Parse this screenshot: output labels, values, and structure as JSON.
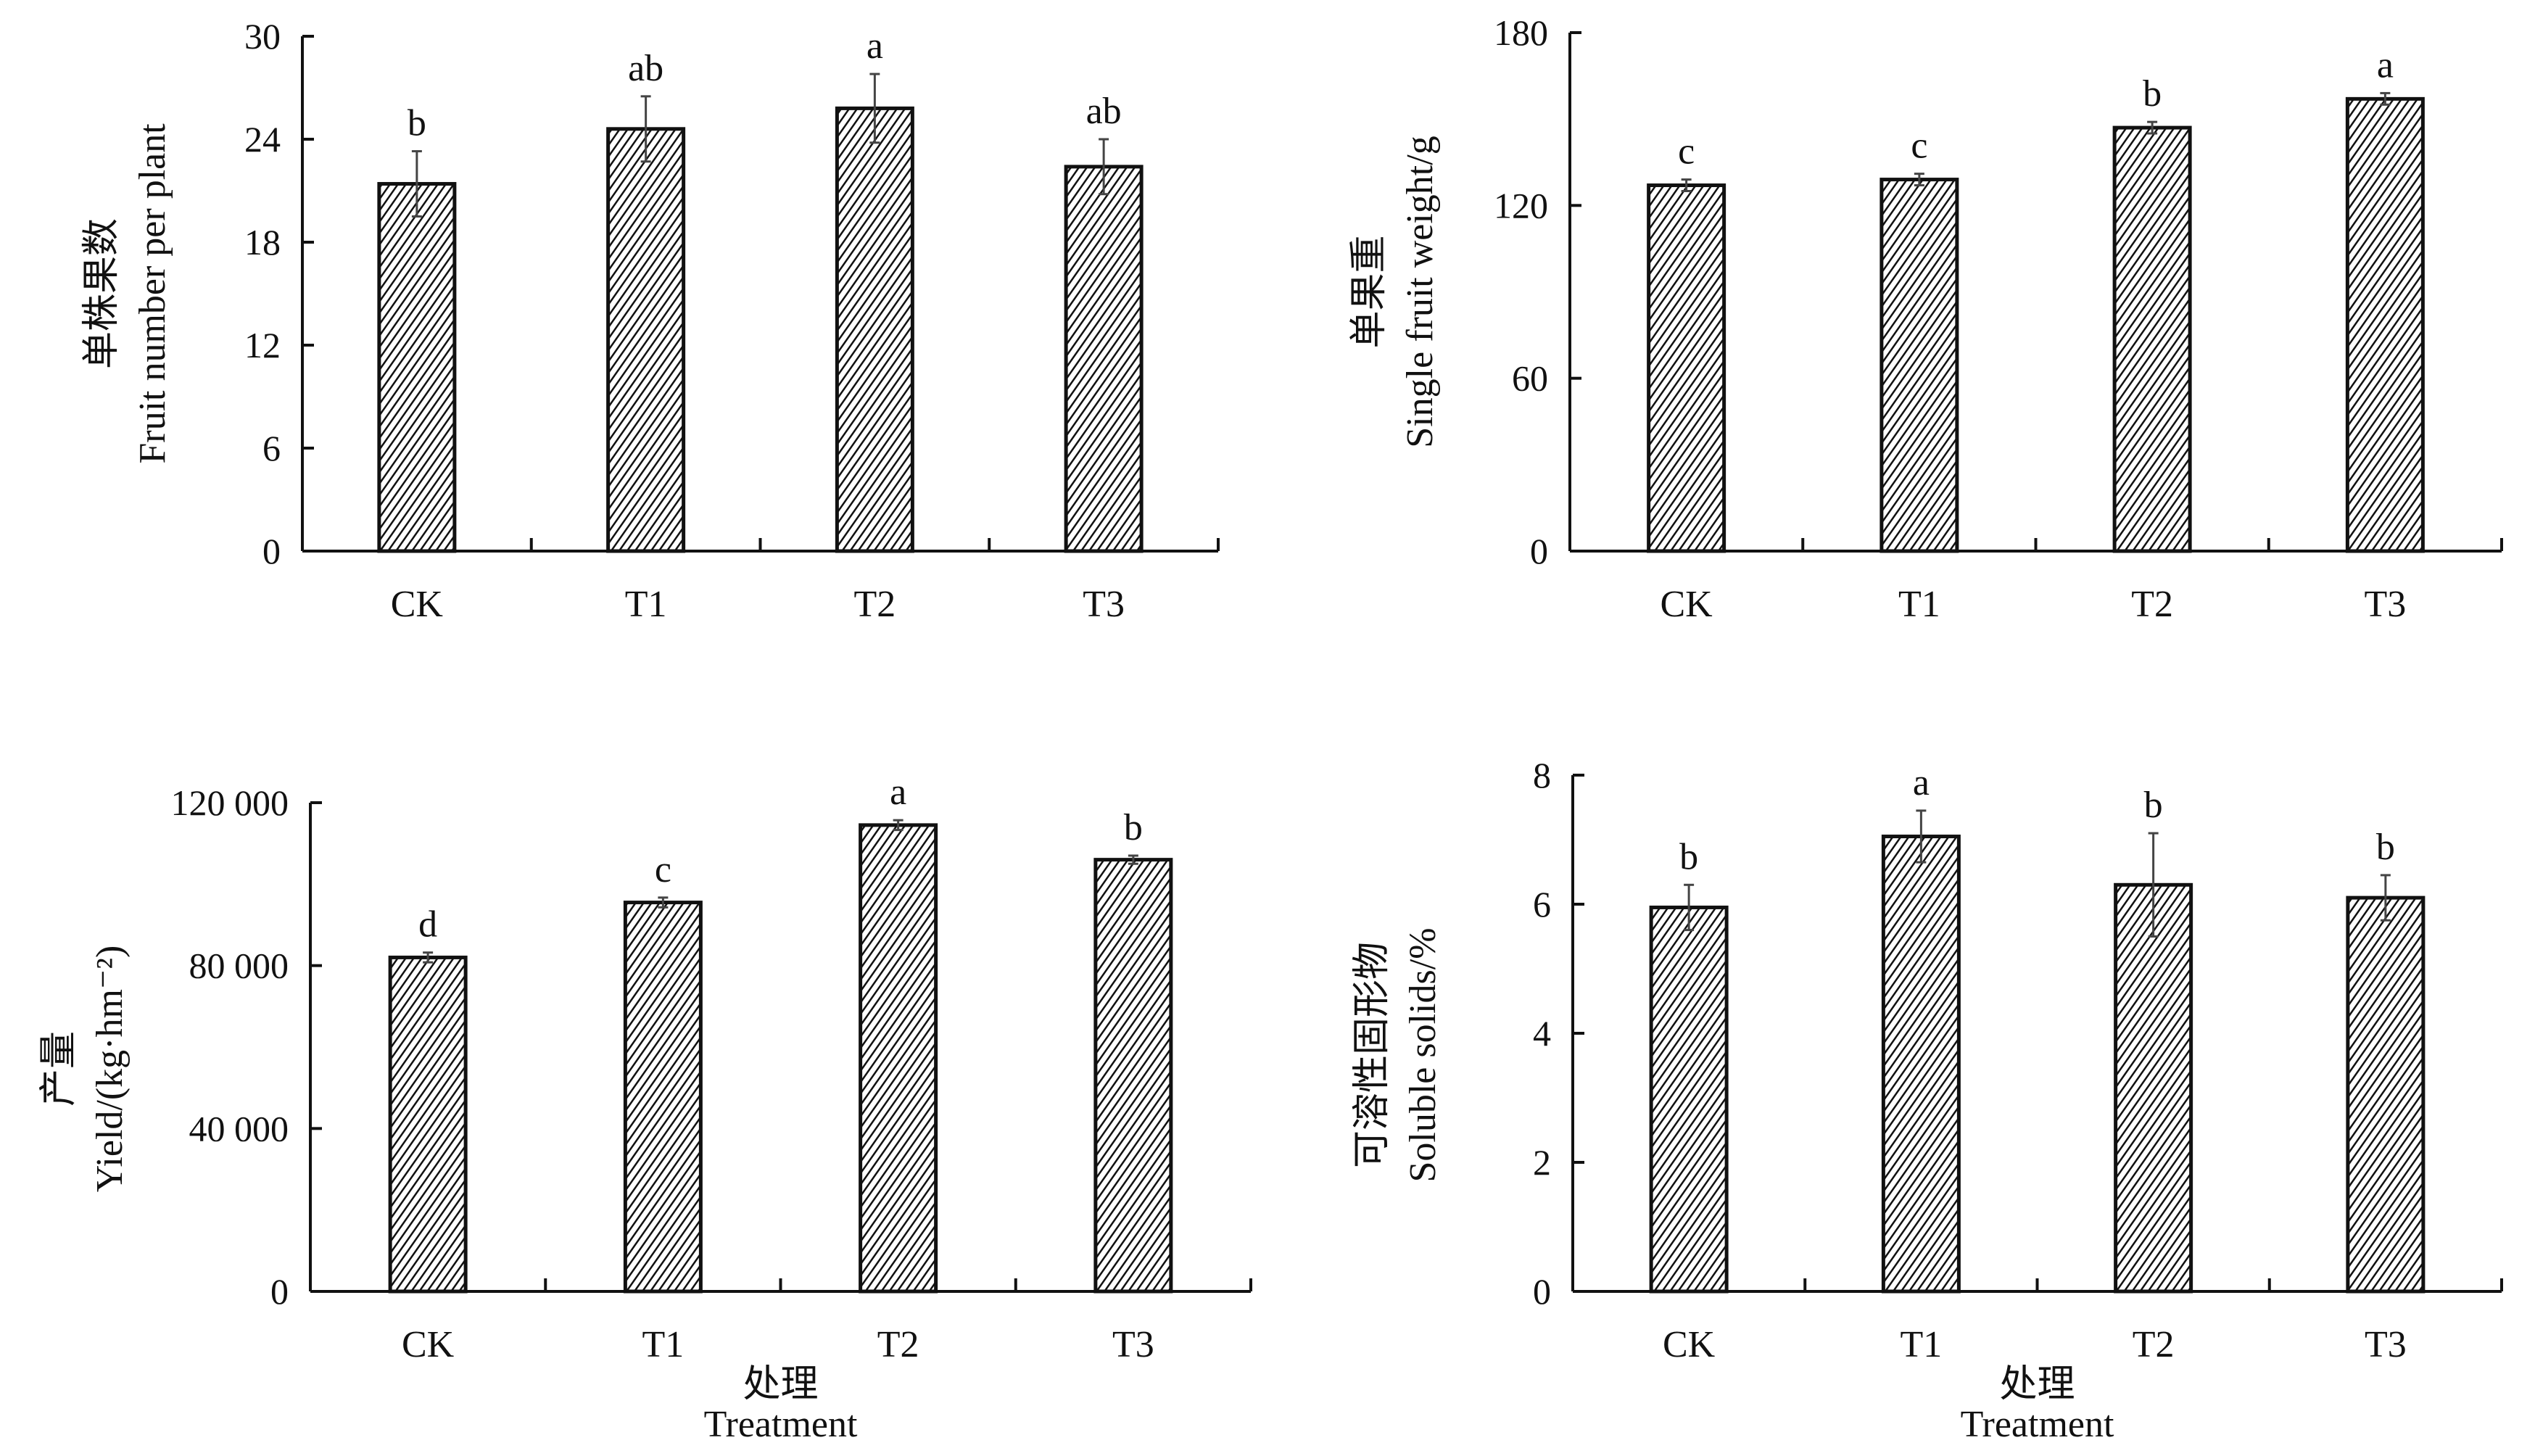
{
  "chart_data": [
    {
      "type": "bar",
      "categories": [
        "CK",
        "T1",
        "T2",
        "T3"
      ],
      "values": [
        21.4,
        24.6,
        25.8,
        22.4
      ],
      "errors": [
        1.9,
        1.9,
        2.0,
        1.6
      ],
      "letters": [
        "b",
        "ab",
        "a",
        "ab"
      ],
      "ylabel_cn": "单株果数",
      "ylabel": "Fruit number per plant",
      "xlabel_cn": "",
      "xlabel": "",
      "ylim": [
        0,
        30
      ],
      "yticks": [
        0,
        6,
        12,
        18,
        24,
        30
      ],
      "ytick_labels": [
        "0",
        "6",
        "12",
        "18",
        "24",
        "30"
      ]
    },
    {
      "type": "bar",
      "categories": [
        "CK",
        "T1",
        "T2",
        "T3"
      ],
      "values": [
        127,
        129,
        147,
        157
      ],
      "errors": [
        2,
        2,
        2,
        2
      ],
      "letters": [
        "c",
        "c",
        "b",
        "a"
      ],
      "ylabel_cn": "单果重",
      "ylabel": "Single fruit weight/g",
      "xlabel_cn": "",
      "xlabel": "",
      "ylim": [
        0,
        180
      ],
      "yticks": [
        0,
        60,
        120,
        180
      ],
      "ytick_labels": [
        "0",
        "60",
        "120",
        "180"
      ]
    },
    {
      "type": "bar",
      "categories": [
        "CK",
        "T1",
        "T2",
        "T3"
      ],
      "values": [
        82000,
        95500,
        114500,
        106000
      ],
      "errors": [
        1200,
        1200,
        1200,
        1000
      ],
      "letters": [
        "d",
        "c",
        "a",
        "b"
      ],
      "ylabel_cn": "产量",
      "ylabel": "Yield/(kg·hm⁻²)",
      "xlabel_cn": "处理",
      "xlabel": "Treatment",
      "ylim": [
        0,
        120000
      ],
      "yticks": [
        0,
        40000,
        80000,
        120000
      ],
      "ytick_labels": [
        "0",
        "40 000",
        "80 000",
        "120 000"
      ]
    },
    {
      "type": "bar",
      "categories": [
        "CK",
        "T1",
        "T2",
        "T3"
      ],
      "values": [
        5.95,
        7.05,
        6.3,
        6.1
      ],
      "errors": [
        0.35,
        0.4,
        0.8,
        0.35
      ],
      "letters": [
        "b",
        "a",
        "b",
        "b"
      ],
      "ylabel_cn": "可溶性固形物",
      "ylabel": "Soluble solids/%",
      "xlabel_cn": "处理",
      "xlabel": "Treatment",
      "ylim": [
        0,
        8
      ],
      "yticks": [
        0,
        2,
        4,
        6,
        8
      ],
      "ytick_labels": [
        "0",
        "2",
        "4",
        "6",
        "8"
      ]
    }
  ]
}
